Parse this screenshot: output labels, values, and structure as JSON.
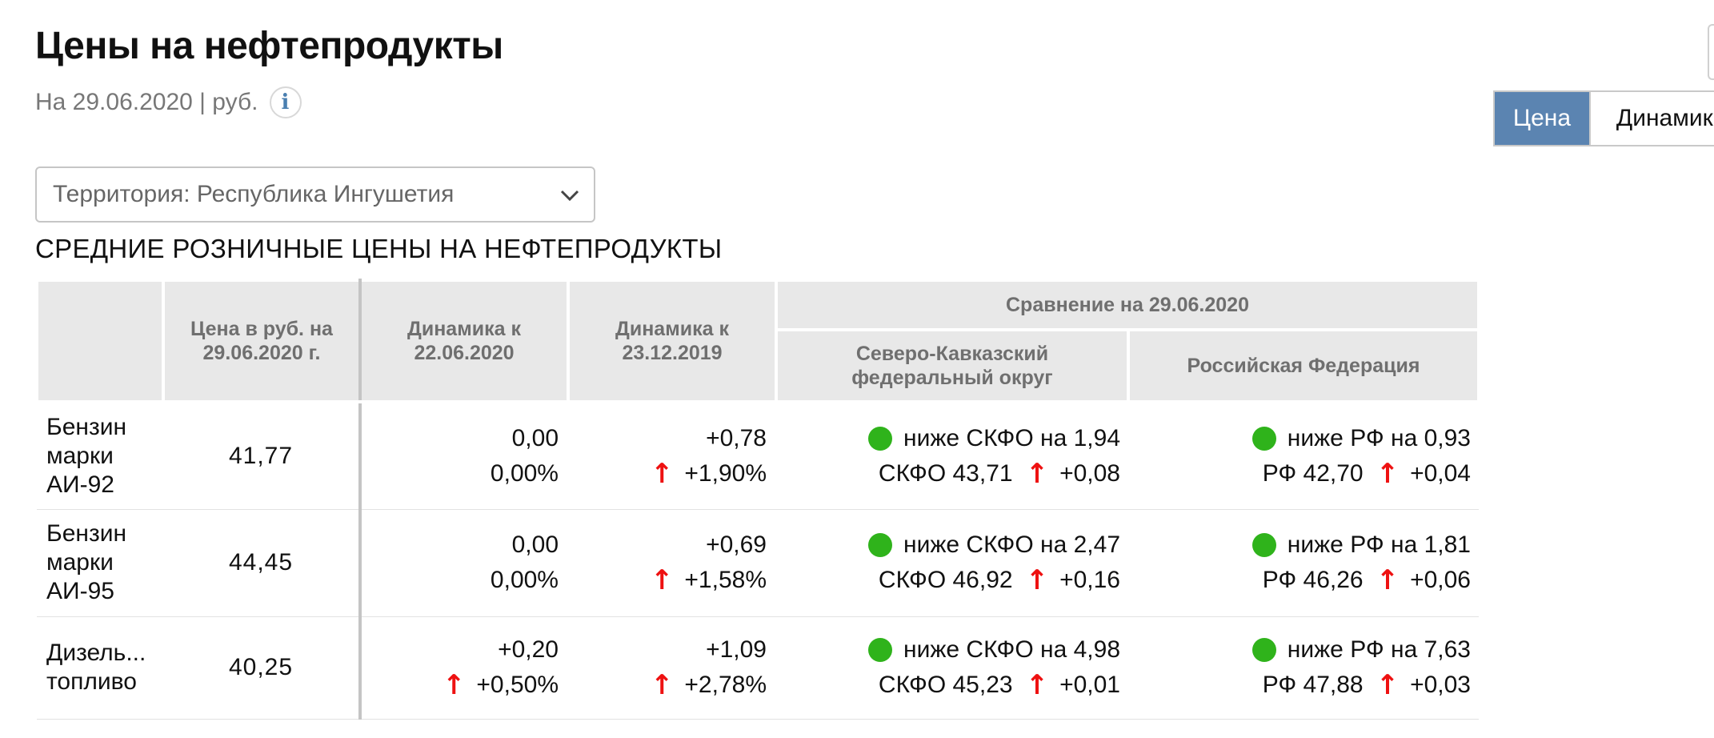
{
  "header": {
    "title": "Цены на нефтепродукты",
    "subtitle": "На 29.06.2020 | руб.",
    "info_icon": "i"
  },
  "view_toggle": {
    "price_label": "Цена",
    "dynamics_label": "Динамика",
    "active": "Цена"
  },
  "territory_select": {
    "value": "Территория: Республика Ингушетия"
  },
  "section_title": "СРЕДНИЕ РОЗНИЧНЫЕ ЦЕНЫ НА НЕФТЕПРОДУКТЫ",
  "table": {
    "headers": {
      "price": "Цена в руб. на 29.06.2020 г.",
      "dyn_week": "Динамика к 22.06.2020",
      "dyn_half": "Динамика к 23.12.2019",
      "comparison": "Сравнение на 29.06.2020",
      "district": "Северо-Кавказский федеральный округ",
      "russia": "Российская Федерация"
    },
    "rows": [
      {
        "name": "Бензин марки АИ-92",
        "price": "41,77",
        "dw_abs": "0,00",
        "dw_pct": "0,00%",
        "dh_abs": "+0,78",
        "dh_pct": "+1,90%",
        "d_cmp": "ниже СКФО на 1,94",
        "d_ref": "СКФО 43,71",
        "d_chg": "+0,08",
        "r_cmp": "ниже РФ на 0,93",
        "r_ref": "РФ 42,70",
        "r_chg": "+0,04"
      },
      {
        "name": "Бензин марки АИ-95",
        "price": "44,45",
        "dw_abs": "0,00",
        "dw_pct": "0,00%",
        "dh_abs": "+0,69",
        "dh_pct": "+1,58%",
        "d_cmp": "ниже СКФО на 2,47",
        "d_ref": "СКФО 46,92",
        "d_chg": "+0,16",
        "r_cmp": "ниже РФ на 1,81",
        "r_ref": "РФ 46,26",
        "r_chg": "+0,06"
      },
      {
        "name": "Дизель... топливо",
        "price": "40,25",
        "dw_abs": "+0,20",
        "dw_pct": "+0,50%",
        "dh_abs": "+1,09",
        "dh_pct": "+2,78%",
        "d_cmp": "ниже СКФО на 4,98",
        "d_ref": "СКФО 45,23",
        "d_chg": "+0,01",
        "r_cmp": "ниже РФ на 7,63",
        "r_ref": "РФ 47,88",
        "r_chg": "+0,03"
      }
    ],
    "arrow_glyph": "↑",
    "colors": {
      "up_arrow": "#ee1111",
      "below_dot": "#2fb31b",
      "header_bg": "#e8e8e8",
      "active_toggle": "#5b84b1"
    }
  }
}
